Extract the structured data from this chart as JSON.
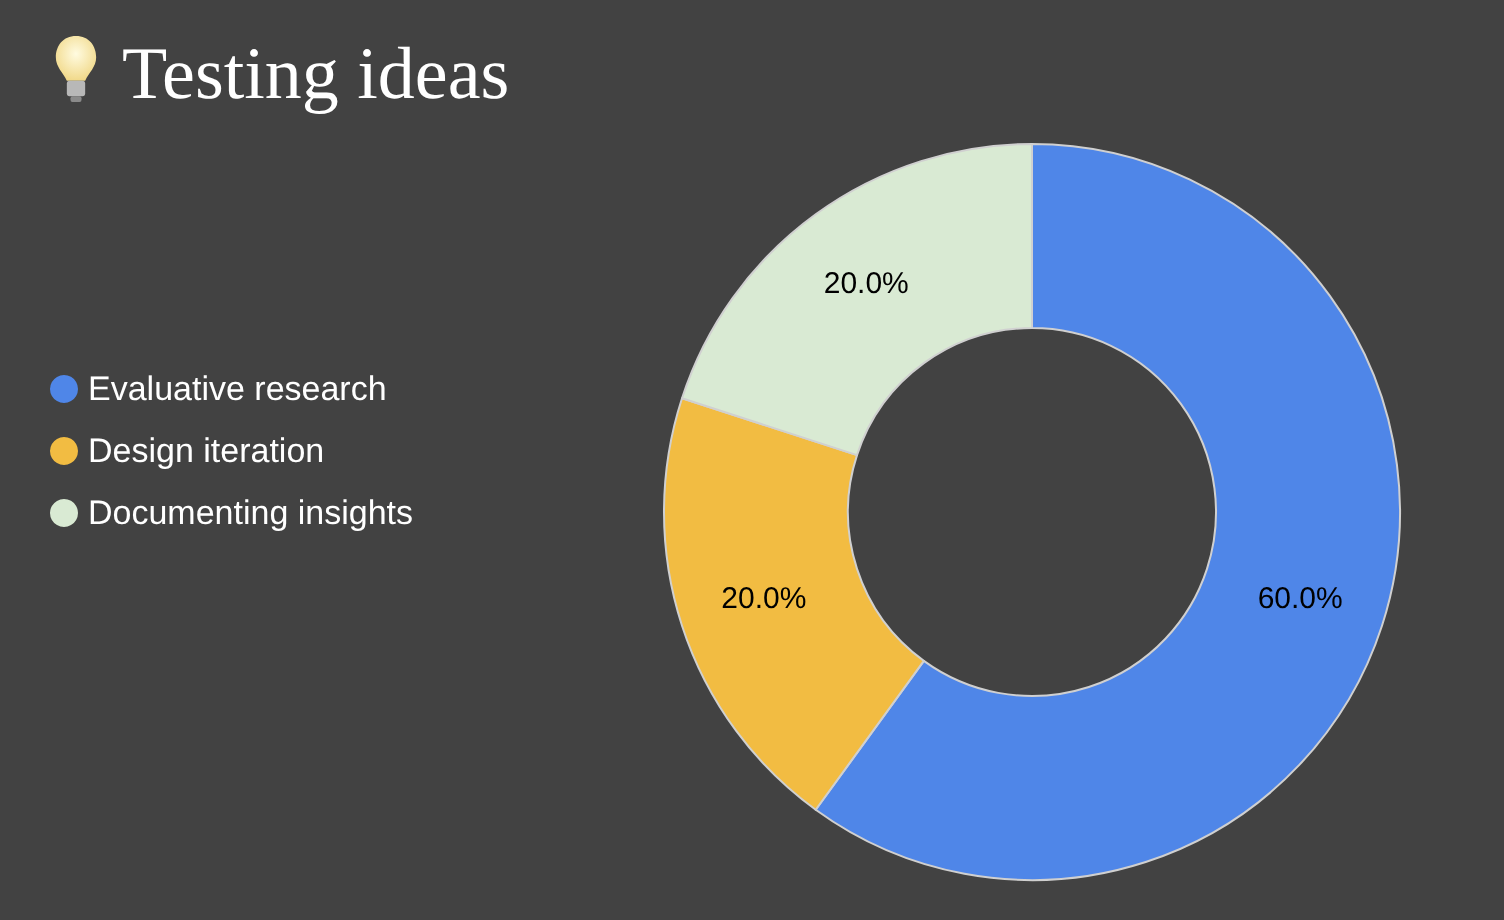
{
  "chart_data": {
    "type": "donut",
    "title": "Testing ideas",
    "categories": [
      "Evaluative research",
      "Design iteration",
      "Documenting insights"
    ],
    "values": [
      60,
      20,
      20
    ],
    "colors": [
      "#4f86e8",
      "#f2bc42",
      "#d9ead3"
    ],
    "value_labels": [
      "60.0%",
      "20.0%",
      "20.0%"
    ],
    "legend": "left"
  }
}
